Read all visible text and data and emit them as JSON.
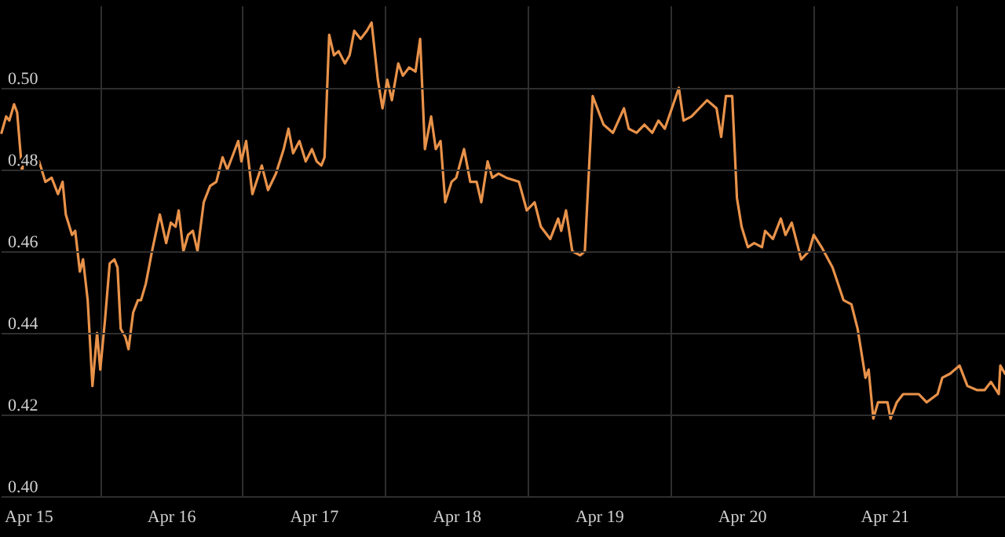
{
  "chart_data": {
    "type": "line",
    "color": "#e8924a",
    "grid": true,
    "marker": "none",
    "line_style": "solid",
    "xlim": [
      "--04-15T07:23",
      "--04-22T08:10"
    ],
    "xticks": [
      {
        "value": "--04-15T12:00",
        "label": "Apr 15"
      },
      {
        "value": "--04-16",
        "label": null
      },
      {
        "value": "--04-16T12:00",
        "label": "Apr 16"
      },
      {
        "value": "--04-17",
        "label": null
      },
      {
        "value": "--04-17T12:00",
        "label": "Apr 17"
      },
      {
        "value": "--04-18",
        "label": null
      },
      {
        "value": "--04-18T12:00",
        "label": "Apr 18"
      },
      {
        "value": "--04-19",
        "label": null
      },
      {
        "value": "--04-19T12:00",
        "label": "Apr 19"
      },
      {
        "value": "--04-20",
        "label": null
      },
      {
        "value": "--04-20T12:00",
        "label": "Apr 20"
      },
      {
        "value": "--04-21",
        "label": null
      },
      {
        "value": "--04-21T12:00",
        "label": "Apr 21"
      },
      {
        "value": "--04-22",
        "label": null
      }
    ],
    "ylim": [
      0.4,
      0.52
    ],
    "yticks": [
      {
        "value": 0.4,
        "label": "0.40"
      },
      {
        "value": 0.42,
        "label": "0.42"
      },
      {
        "value": 0.44,
        "label": "0.44"
      },
      {
        "value": 0.46,
        "label": "0.46"
      },
      {
        "value": 0.48,
        "label": "0.48"
      },
      {
        "value": 0.5,
        "label": "0.50"
      }
    ],
    "x": [
      "--04-15T07:23",
      "--04-15T08:10",
      "--04-15T08:42",
      "--04-15T09:30",
      "--04-15T10:01",
      "--04-15T10:49",
      "--04-15T11:36",
      "--04-15T12:40",
      "--04-15T13:43",
      "--04-15T14:46",
      "--04-15T15:49",
      "--04-15T16:53",
      "--04-15T17:40",
      "--04-15T18:12",
      "--04-15T19:15",
      "--04-15T19:47",
      "--04-15T20:34",
      "--04-15T21:06",
      "--04-15T21:53",
      "--04-15T22:41",
      "--04-15T23:28",
      "--04-16T00:00",
      "--04-16T00:47",
      "--04-16T01:35",
      "--04-16T02:22",
      "--04-16T02:54",
      "--04-16T03:26",
      "--04-16T04:13",
      "--04-16T04:45",
      "--04-16T05:32",
      "--04-16T06:20",
      "--04-16T06:51",
      "--04-16T07:39",
      "--04-16T08:11",
      "--04-16T08:42",
      "--04-16T10:01",
      "--04-16T11:05",
      "--04-16T11:52",
      "--04-16T12:40",
      "--04-16T13:11",
      "--04-16T13:59",
      "--04-16T14:46",
      "--04-16T15:34",
      "--04-16T16:21",
      "--04-16T17:24",
      "--04-16T18:28",
      "--04-16T19:31",
      "--04-16T20:34",
      "--04-16T21:22",
      "--04-16T22:25",
      "--04-16T23:12",
      "--04-16T23:44",
      "--04-17T00:32",
      "--04-17T01:35",
      "--04-17T03:10",
      "--04-17T04:13",
      "--04-17T05:32",
      "--04-17T06:51",
      "--04-17T07:39",
      "--04-17T08:26",
      "--04-17T09:30",
      "--04-17T10:33",
      "--04-17T11:36",
      "--04-17T12:24",
      "--04-17T13:11",
      "--04-17T13:43",
      "--04-17T14:30",
      "--04-17T15:18",
      "--04-17T16:05",
      "--04-17T17:09",
      "--04-17T17:56",
      "--04-17T18:43",
      "--04-17T19:47",
      "--04-17T20:50",
      "--04-17T21:38",
      "--04-17T22:41",
      "--04-17T23:28",
      "--04-18T00:16",
      "--04-18T01:03",
      "--04-18T02:07",
      "--04-18T02:54",
      "--04-18T03:57",
      "--04-18T05:01",
      "--04-18T05:48",
      "--04-18T06:36",
      "--04-18T07:39",
      "--04-18T08:26",
      "--04-18T09:14",
      "--04-18T10:01",
      "--04-18T11:05",
      "--04-18T11:52",
      "--04-18T13:11",
      "--04-18T14:14",
      "--04-18T15:18",
      "--04-18T16:05",
      "--04-18T17:09",
      "--04-18T17:56",
      "--04-18T18:59",
      "--04-18T20:18",
      "--04-18T22:25",
      "--04-18T23:44",
      "--04-19T01:03",
      "--04-19T02:06",
      "--04-19T03:41",
      "--04-19T05:01",
      "--04-19T05:32",
      "--04-19T06:20",
      "--04-19T07:23",
      "--04-19T08:42",
      "--04-19T09:30",
      "--04-19T10:49",
      "--04-19T11:36",
      "--04-19T12:39",
      "--04-19T14:14",
      "--04-19T16:05",
      "--04-19T16:53",
      "--04-19T18:12",
      "--04-19T19:31",
      "--04-19T20:50",
      "--04-19T21:53",
      "--04-19T22:57",
      "--04-20T01:19",
      "--04-20T02:06",
      "--04-20T03:26",
      "--04-20T04:45",
      "--04-20T06:04",
      "--04-20T07:39",
      "--04-20T08:26",
      "--04-20T09:14",
      "--04-20T10:17",
      "--04-20T11:05",
      "--04-20T11:52",
      "--04-20T12:55",
      "--04-20T13:59",
      "--04-20T15:18",
      "--04-20T15:49",
      "--04-20T17:08",
      "--04-20T18:28",
      "--04-20T19:15",
      "--04-20T20:18",
      "--04-20T21:53",
      "--04-20T23:12",
      "--04-21T00:00",
      "--04-21T01:19",
      "--04-21T03:10",
      "--04-21T05:01",
      "--04-21T06:20",
      "--04-21T07:23",
      "--04-21T08:42",
      "--04-21T09:14",
      "--04-21T10:01",
      "--04-21T10:49",
      "--04-21T12:24",
      "--04-21T12:55",
      "--04-21T13:58",
      "--04-21T15:02",
      "--04-21T16:21",
      "--04-21T17:40",
      "--04-21T18:59",
      "--04-21T20:50",
      "--04-21T21:37",
      "--04-21T22:56",
      "--04-22T00:31",
      "--04-22T01:51",
      "--04-22T03:26",
      "--04-22T04:45",
      "--04-22T05:48",
      "--04-22T07:07",
      "--04-22T07:23",
      "--04-22T08:10"
    ],
    "values": [
      0.489,
      0.493,
      0.492,
      0.496,
      0.494,
      0.48,
      0.482,
      0.483,
      0.482,
      0.477,
      0.478,
      0.474,
      0.477,
      0.469,
      0.464,
      0.465,
      0.455,
      0.458,
      0.448,
      0.427,
      0.44,
      0.431,
      0.443,
      0.457,
      0.458,
      0.456,
      0.441,
      0.439,
      0.436,
      0.445,
      0.448,
      0.448,
      0.452,
      0.456,
      0.46,
      0.469,
      0.462,
      0.467,
      0.466,
      0.47,
      0.46,
      0.464,
      0.465,
      0.46,
      0.472,
      0.476,
      0.477,
      0.483,
      0.48,
      0.484,
      0.487,
      0.482,
      0.487,
      0.474,
      0.481,
      0.475,
      0.479,
      0.485,
      0.49,
      0.484,
      0.487,
      0.482,
      0.485,
      0.482,
      0.481,
      0.483,
      0.513,
      0.508,
      0.509,
      0.506,
      0.508,
      0.514,
      0.512,
      0.514,
      0.516,
      0.502,
      0.495,
      0.502,
      0.497,
      0.506,
      0.503,
      0.505,
      0.504,
      0.512,
      0.485,
      0.493,
      0.485,
      0.487,
      0.472,
      0.477,
      0.478,
      0.485,
      0.477,
      0.477,
      0.472,
      0.482,
      0.478,
      0.479,
      0.478,
      0.477,
      0.47,
      0.472,
      0.466,
      0.463,
      0.468,
      0.465,
      0.47,
      0.46,
      0.459,
      0.46,
      0.498,
      0.495,
      0.491,
      0.489,
      0.495,
      0.49,
      0.489,
      0.491,
      0.489,
      0.492,
      0.49,
      0.5,
      0.492,
      0.493,
      0.495,
      0.497,
      0.495,
      0.488,
      0.498,
      0.498,
      0.473,
      0.466,
      0.461,
      0.462,
      0.461,
      0.465,
      0.463,
      0.468,
      0.464,
      0.467,
      0.458,
      0.46,
      0.464,
      0.461,
      0.456,
      0.448,
      0.447,
      0.441,
      0.429,
      0.431,
      0.419,
      0.423,
      0.423,
      0.419,
      0.423,
      0.425,
      0.425,
      0.425,
      0.423,
      0.425,
      0.429,
      0.43,
      0.432,
      0.427,
      0.426,
      0.426,
      0.428,
      0.425,
      0.432,
      0.43
    ]
  }
}
